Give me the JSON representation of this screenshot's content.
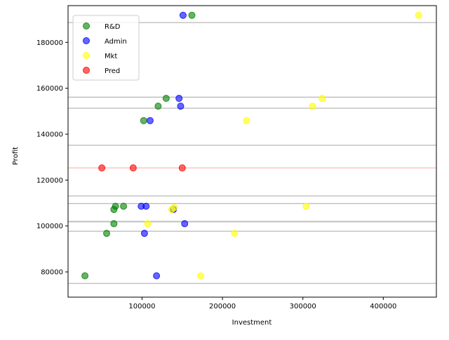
{
  "chart_data": {
    "type": "scatter",
    "xlabel": "Investment",
    "ylabel": "Profit",
    "xlim": [
      8000,
      466000
    ],
    "ylim": [
      69000,
      196000
    ],
    "x_ticks": [
      100000,
      200000,
      300000,
      400000
    ],
    "x_tick_labels": [
      "100000",
      "200000",
      "300000",
      "400000"
    ],
    "y_ticks": [
      80000,
      100000,
      120000,
      140000,
      160000,
      180000
    ],
    "y_tick_labels": [
      "80000",
      "100000",
      "120000",
      "140000",
      "160000",
      "180000"
    ],
    "grid": false,
    "legend_position": "upper-left",
    "hlines": {
      "color": "#bfbfbf",
      "values": [
        75000,
        97700,
        101800,
        102000,
        109800,
        113100,
        135200,
        151300,
        156100,
        188600
      ]
    },
    "pred_line": {
      "color": "#ffc0c0",
      "value": 125300
    },
    "series": [
      {
        "name": "R&D",
        "color": "#008000",
        "points": [
          {
            "x": 162000,
            "y": 191800
          },
          {
            "x": 130000,
            "y": 155600
          },
          {
            "x": 120000,
            "y": 152200
          },
          {
            "x": 102000,
            "y": 145900
          },
          {
            "x": 77000,
            "y": 108600
          },
          {
            "x": 67000,
            "y": 108600
          },
          {
            "x": 65000,
            "y": 107200
          },
          {
            "x": 65000,
            "y": 101000
          },
          {
            "x": 56000,
            "y": 96800
          },
          {
            "x": 29000,
            "y": 78300
          }
        ]
      },
      {
        "name": "Admin",
        "color": "#0000ff",
        "points": [
          {
            "x": 151000,
            "y": 191800
          },
          {
            "x": 146000,
            "y": 155600
          },
          {
            "x": 148000,
            "y": 152200
          },
          {
            "x": 110000,
            "y": 145900
          },
          {
            "x": 99000,
            "y": 108600
          },
          {
            "x": 105000,
            "y": 108600
          },
          {
            "x": 139000,
            "y": 107200
          },
          {
            "x": 153000,
            "y": 101000
          },
          {
            "x": 103000,
            "y": 96800
          },
          {
            "x": 118000,
            "y": 78300
          }
        ]
      },
      {
        "name": "Mkt",
        "color": "#ffff00",
        "points": [
          {
            "x": 444000,
            "y": 191800
          },
          {
            "x": 324000,
            "y": 155600
          },
          {
            "x": 312000,
            "y": 152200
          },
          {
            "x": 230000,
            "y": 145900
          },
          {
            "x": 304000,
            "y": 108600
          },
          {
            "x": 140000,
            "y": 108100
          },
          {
            "x": 137000,
            "y": 107200
          },
          {
            "x": 107000,
            "y": 101000
          },
          {
            "x": 215000,
            "y": 96800
          },
          {
            "x": 173000,
            "y": 78300
          }
        ]
      },
      {
        "name": "Pred",
        "color": "#ff0000",
        "points": [
          {
            "x": 50000,
            "y": 125300
          },
          {
            "x": 89000,
            "y": 125300
          },
          {
            "x": 150000,
            "y": 125300
          }
        ]
      }
    ]
  }
}
